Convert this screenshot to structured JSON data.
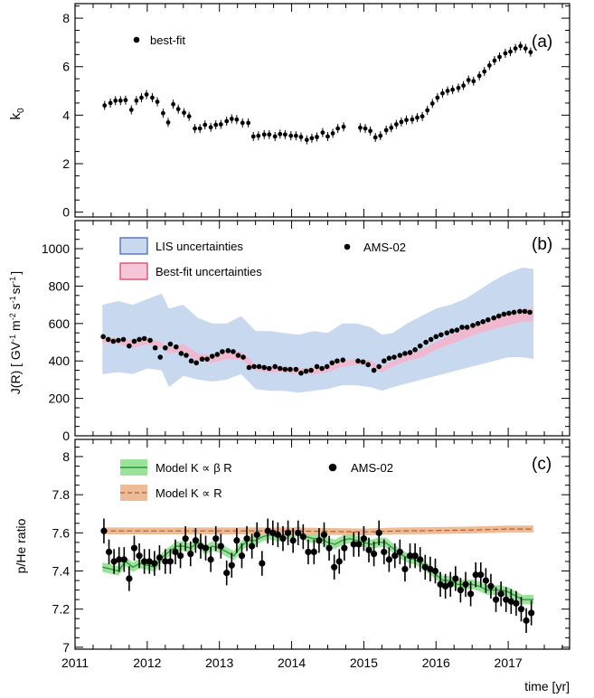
{
  "chart_data": [
    {
      "panel": "(a)",
      "type": "scatter",
      "ylabel": "k",
      "ylabel_sub": "0",
      "ylim": [
        -0.2,
        8.6
      ],
      "xlim": [
        2011,
        2017.85
      ],
      "yticks": [
        "0",
        "2",
        "4",
        "6",
        "8"
      ],
      "grid": false,
      "legend": [
        {
          "label": "best-fit",
          "marker": "dot"
        }
      ],
      "series": [
        {
          "x": [
            2011.41,
            2011.49,
            2011.56,
            2011.63,
            2011.7,
            2011.78,
            2011.85,
            2011.92,
            2011.99,
            2012.07,
            2012.14,
            2012.22,
            2012.29,
            2012.36,
            2012.43,
            2012.51,
            2012.58,
            2012.66,
            2012.73,
            2012.8,
            2012.88,
            2012.95,
            2013.02,
            2013.1,
            2013.17,
            2013.24,
            2013.32,
            2013.4,
            2013.47,
            2013.54,
            2013.62,
            2013.69,
            2013.77,
            2013.84,
            2013.91,
            2013.99,
            2014.06,
            2014.13,
            2014.21,
            2014.28,
            2014.35,
            2014.43,
            2014.5,
            2014.57,
            2014.64,
            2014.72,
            2014.95,
            2015.02,
            2015.09,
            2015.16,
            2015.23,
            2015.31,
            2015.38,
            2015.45,
            2015.52,
            2015.59,
            2015.67,
            2015.74,
            2015.81,
            2015.88,
            2015.95,
            2016.02,
            2016.09,
            2016.16,
            2016.23,
            2016.31,
            2016.38,
            2016.45,
            2016.52,
            2016.6,
            2016.67,
            2016.74,
            2016.81,
            2016.88,
            2016.96,
            2017.03,
            2017.1,
            2017.17,
            2017.24,
            2017.31
          ],
          "y": [
            4.4,
            4.5,
            4.6,
            4.6,
            4.62,
            4.22,
            4.6,
            4.72,
            4.85,
            4.72,
            4.55,
            4.08,
            3.7,
            4.45,
            4.25,
            4.1,
            3.95,
            3.45,
            3.45,
            3.6,
            3.5,
            3.6,
            3.62,
            3.75,
            3.85,
            3.82,
            3.68,
            3.68,
            3.12,
            3.15,
            3.2,
            3.2,
            3.12,
            3.22,
            3.2,
            3.15,
            3.15,
            3.1,
            2.98,
            3.05,
            3.1,
            3.28,
            3.12,
            3.25,
            3.45,
            3.52,
            3.48,
            3.45,
            3.35,
            3.08,
            3.15,
            3.38,
            3.48,
            3.62,
            3.72,
            3.8,
            3.82,
            3.9,
            3.95,
            4.2,
            4.48,
            4.72,
            4.9,
            5.0,
            5.05,
            5.12,
            5.22,
            5.45,
            5.4,
            5.62,
            5.8,
            6.05,
            6.25,
            6.4,
            6.55,
            6.62,
            6.75,
            6.85,
            6.75,
            6.6
          ]
        }
      ]
    },
    {
      "panel": "(b)",
      "type": "scatter",
      "ylabel": "J(R)  [ GV",
      "ylabel_sup1": "-1",
      "ylabel_m": " m",
      "ylabel_sup2": "-2",
      "ylabel_s": " s",
      "ylabel_sup3": "-1",
      "ylabel_sr": "sr",
      "ylabel_sup4": "-1",
      "ylabel_end": "]",
      "ylim": [
        0,
        1150
      ],
      "xlim": [
        2011,
        2017.85
      ],
      "yticks": [
        "0",
        "200",
        "400",
        "600",
        "800",
        "1000"
      ],
      "grid": false,
      "legend": [
        {
          "label": "LIS uncertainties",
          "color": "#c8d8ee",
          "edge": "#3a5fb0"
        },
        {
          "label": "Best-fit uncertainties",
          "color": "#f4c6d8",
          "edge": "#d63a5a"
        },
        {
          "label": "AMS-02",
          "marker": "dot"
        }
      ],
      "bands": [
        {
          "name": "LIS uncertainties",
          "color": "#c8d8ee",
          "x": [
            2011.38,
            2011.6,
            2011.8,
            2012.0,
            2012.2,
            2012.3,
            2012.5,
            2012.7,
            2012.9,
            2013.1,
            2013.3,
            2013.5,
            2013.7,
            2013.9,
            2014.1,
            2014.3,
            2014.5,
            2014.7,
            2014.9,
            2015.1,
            2015.25,
            2015.4,
            2015.6,
            2015.8,
            2016.0,
            2016.2,
            2016.4,
            2016.6,
            2016.8,
            2017.0,
            2017.2,
            2017.35
          ],
          "upper": [
            700,
            720,
            700,
            730,
            760,
            680,
            700,
            630,
            600,
            600,
            640,
            560,
            560,
            550,
            540,
            560,
            550,
            600,
            600,
            580,
            540,
            550,
            600,
            640,
            680,
            700,
            730,
            780,
            830,
            870,
            900,
            890
          ],
          "lower": [
            330,
            340,
            330,
            360,
            350,
            260,
            320,
            300,
            290,
            300,
            330,
            250,
            240,
            240,
            230,
            240,
            250,
            270,
            270,
            260,
            240,
            260,
            280,
            300,
            320,
            340,
            360,
            380,
            400,
            420,
            420,
            410
          ]
        },
        {
          "name": "Best-fit uncertainties",
          "color": "#f0b8cf",
          "x": [
            2011.38,
            2011.6,
            2011.8,
            2012.0,
            2012.2,
            2012.3,
            2012.5,
            2012.7,
            2012.9,
            2013.1,
            2013.3,
            2013.5,
            2013.7,
            2013.9,
            2014.1,
            2014.3,
            2014.5,
            2014.7,
            2014.9,
            2015.1,
            2015.25,
            2015.4,
            2015.6,
            2015.8,
            2016.0,
            2016.2,
            2016.4,
            2016.6,
            2016.8,
            2017.0,
            2017.2,
            2017.35
          ],
          "upper": [
            530,
            520,
            510,
            520,
            500,
            470,
            490,
            440,
            430,
            450,
            450,
            380,
            370,
            370,
            360,
            365,
            370,
            400,
            410,
            400,
            370,
            400,
            430,
            460,
            500,
            540,
            570,
            600,
            630,
            660,
            680,
            680
          ],
          "lower": [
            500,
            490,
            470,
            490,
            470,
            440,
            450,
            400,
            390,
            410,
            410,
            350,
            340,
            340,
            330,
            330,
            340,
            370,
            380,
            370,
            340,
            370,
            400,
            420,
            460,
            490,
            520,
            550,
            570,
            590,
            610,
            610
          ]
        }
      ],
      "series": [
        {
          "name": "AMS-02",
          "x": [
            2011.39,
            2011.46,
            2011.53,
            2011.6,
            2011.67,
            2011.75,
            2011.82,
            2011.89,
            2011.96,
            2012.04,
            2012.11,
            2012.18,
            2012.25,
            2012.32,
            2012.4,
            2012.47,
            2012.54,
            2012.61,
            2012.68,
            2012.76,
            2012.83,
            2012.9,
            2012.97,
            2013.04,
            2013.12,
            2013.19,
            2013.26,
            2013.33,
            2013.41,
            2013.48,
            2013.55,
            2013.62,
            2013.69,
            2013.77,
            2013.84,
            2013.91,
            2013.98,
            2014.06,
            2014.13,
            2014.2,
            2014.27,
            2014.35,
            2014.42,
            2014.49,
            2014.56,
            2014.63,
            2014.71,
            2014.92,
            2014.99,
            2015.06,
            2015.14,
            2015.21,
            2015.28,
            2015.35,
            2015.42,
            2015.5,
            2015.57,
            2015.64,
            2015.71,
            2015.78,
            2015.86,
            2015.93,
            2016.0,
            2016.07,
            2016.15,
            2016.22,
            2016.29,
            2016.36,
            2016.43,
            2016.51,
            2016.58,
            2016.65,
            2016.72,
            2016.8,
            2016.87,
            2016.94,
            2017.01,
            2017.08,
            2017.16,
            2017.23,
            2017.3
          ],
          "y": [
            530,
            515,
            505,
            510,
            515,
            480,
            505,
            515,
            520,
            510,
            470,
            420,
            470,
            490,
            475,
            440,
            430,
            400,
            390,
            410,
            410,
            425,
            435,
            450,
            455,
            450,
            430,
            420,
            365,
            370,
            370,
            365,
            360,
            370,
            360,
            355,
            355,
            355,
            335,
            345,
            350,
            370,
            360,
            370,
            390,
            400,
            405,
            400,
            395,
            380,
            350,
            370,
            400,
            415,
            420,
            430,
            440,
            445,
            460,
            480,
            500,
            515,
            530,
            540,
            550,
            560,
            565,
            580,
            580,
            590,
            600,
            610,
            620,
            630,
            640,
            650,
            655,
            660,
            665,
            665,
            660
          ]
        }
      ]
    },
    {
      "panel": "(c)",
      "type": "scatter",
      "ylabel": "p/He ratio",
      "xlabel": "time [yr]",
      "ylim": [
        6.99,
        8.09
      ],
      "xlim": [
        2011,
        2017.85
      ],
      "yticks": [
        "7",
        "7.2",
        "7.4",
        "7.6",
        "7.8",
        "8"
      ],
      "xticks": [
        "2011",
        "2012",
        "2013",
        "2014",
        "2015",
        "2016",
        "2017"
      ],
      "grid": false,
      "legend": [
        {
          "label": "Model K ∝ β R",
          "color": "#9be39a",
          "line": "#2b9a3c"
        },
        {
          "label": "Model K ∝ R",
          "color": "#eebb97",
          "line": "#b55a2a"
        },
        {
          "label": "AMS-02",
          "marker": "dot"
        }
      ],
      "bands": [
        {
          "name": "Model K ∝ β R",
          "color": "#9be39a",
          "line": "#2b9a3c",
          "x": [
            2011.38,
            2011.5,
            2011.6,
            2011.7,
            2011.8,
            2011.9,
            2012.0,
            2012.1,
            2012.2,
            2012.3,
            2012.4,
            2012.5,
            2012.6,
            2012.7,
            2012.8,
            2012.9,
            2013.0,
            2013.1,
            2013.2,
            2013.3,
            2013.4,
            2013.5,
            2013.6,
            2013.7,
            2013.8,
            2013.9,
            2014.0,
            2014.1,
            2014.2,
            2014.3,
            2014.4,
            2014.5,
            2014.6,
            2014.7,
            2014.8,
            2014.9,
            2015.0,
            2015.1,
            2015.2,
            2015.3,
            2015.4,
            2015.5,
            2015.6,
            2015.7,
            2015.8,
            2015.9,
            2016.0,
            2016.1,
            2016.2,
            2016.3,
            2016.4,
            2016.5,
            2016.6,
            2016.7,
            2016.8,
            2016.9,
            2017.0,
            2017.1,
            2017.2,
            2017.35
          ],
          "mid": [
            7.42,
            7.41,
            7.4,
            7.45,
            7.42,
            7.44,
            7.43,
            7.42,
            7.47,
            7.5,
            7.53,
            7.53,
            7.52,
            7.55,
            7.51,
            7.53,
            7.52,
            7.5,
            7.48,
            7.53,
            7.56,
            7.56,
            7.58,
            7.59,
            7.58,
            7.59,
            7.6,
            7.61,
            7.58,
            7.57,
            7.57,
            7.55,
            7.54,
            7.56,
            7.57,
            7.56,
            7.55,
            7.54,
            7.55,
            7.55,
            7.52,
            7.49,
            7.47,
            7.46,
            7.44,
            7.41,
            7.38,
            7.35,
            7.35,
            7.33,
            7.33,
            7.33,
            7.32,
            7.3,
            7.3,
            7.3,
            7.29,
            7.27,
            7.25,
            7.25
          ],
          "half": 0.025
        }
      ],
      "lines": [
        {
          "name": "Model K ∝ R",
          "color": "#eebb97",
          "line": "#b55a2a",
          "x": [
            2011.38,
            2012.0,
            2013.0,
            2014.0,
            2015.0,
            2015.5,
            2016.0,
            2016.5,
            2017.0,
            2017.35
          ],
          "mid": [
            7.61,
            7.61,
            7.61,
            7.61,
            7.605,
            7.61,
            7.612,
            7.615,
            7.62,
            7.62
          ],
          "half": 0.018
        }
      ],
      "series": [
        {
          "name": "AMS-02",
          "x": [
            2011.4,
            2011.47,
            2011.54,
            2011.61,
            2011.68,
            2011.75,
            2011.82,
            2011.89,
            2011.96,
            2012.03,
            2012.1,
            2012.17,
            2012.25,
            2012.32,
            2012.39,
            2012.46,
            2012.53,
            2012.6,
            2012.67,
            2012.74,
            2012.81,
            2012.88,
            2012.95,
            2013.02,
            2013.1,
            2013.17,
            2013.24,
            2013.31,
            2013.38,
            2013.45,
            2013.52,
            2013.59,
            2013.67,
            2013.74,
            2013.81,
            2013.88,
            2013.95,
            2014.02,
            2014.09,
            2014.16,
            2014.23,
            2014.31,
            2014.38,
            2014.45,
            2014.52,
            2014.59,
            2014.66,
            2014.73,
            2014.86,
            2014.93,
            2015.0,
            2015.07,
            2015.14,
            2015.21,
            2015.28,
            2015.35,
            2015.43,
            2015.5,
            2015.57,
            2015.64,
            2015.71,
            2015.78,
            2015.85,
            2015.92,
            2015.99,
            2016.06,
            2016.13,
            2016.2,
            2016.27,
            2016.34,
            2016.41,
            2016.48,
            2016.55,
            2016.62,
            2016.69,
            2016.76,
            2016.83,
            2016.9,
            2016.97,
            2017.04,
            2017.11,
            2017.18,
            2017.25,
            2017.32
          ],
          "y": [
            7.61,
            7.5,
            7.45,
            7.46,
            7.46,
            7.36,
            7.52,
            7.48,
            7.45,
            7.45,
            7.44,
            7.47,
            7.45,
            7.45,
            7.5,
            7.48,
            7.57,
            7.49,
            7.56,
            7.53,
            7.52,
            7.46,
            7.57,
            7.53,
            7.39,
            7.43,
            7.56,
            7.48,
            7.57,
            7.53,
            7.59,
            7.44,
            7.61,
            7.6,
            7.59,
            7.57,
            7.6,
            7.56,
            7.6,
            7.58,
            7.5,
            7.5,
            7.56,
            7.59,
            7.52,
            7.42,
            7.45,
            7.52,
            7.54,
            7.54,
            7.57,
            7.51,
            7.49,
            7.6,
            7.5,
            7.46,
            7.48,
            7.5,
            7.41,
            7.48,
            7.48,
            7.46,
            7.42,
            7.41,
            7.4,
            7.33,
            7.32,
            7.33,
            7.36,
            7.3,
            7.33,
            7.28,
            7.38,
            7.38,
            7.35,
            7.32,
            7.25,
            7.28,
            7.25,
            7.24,
            7.23,
            7.2,
            7.14,
            7.18
          ],
          "err": 0.065
        }
      ]
    }
  ]
}
